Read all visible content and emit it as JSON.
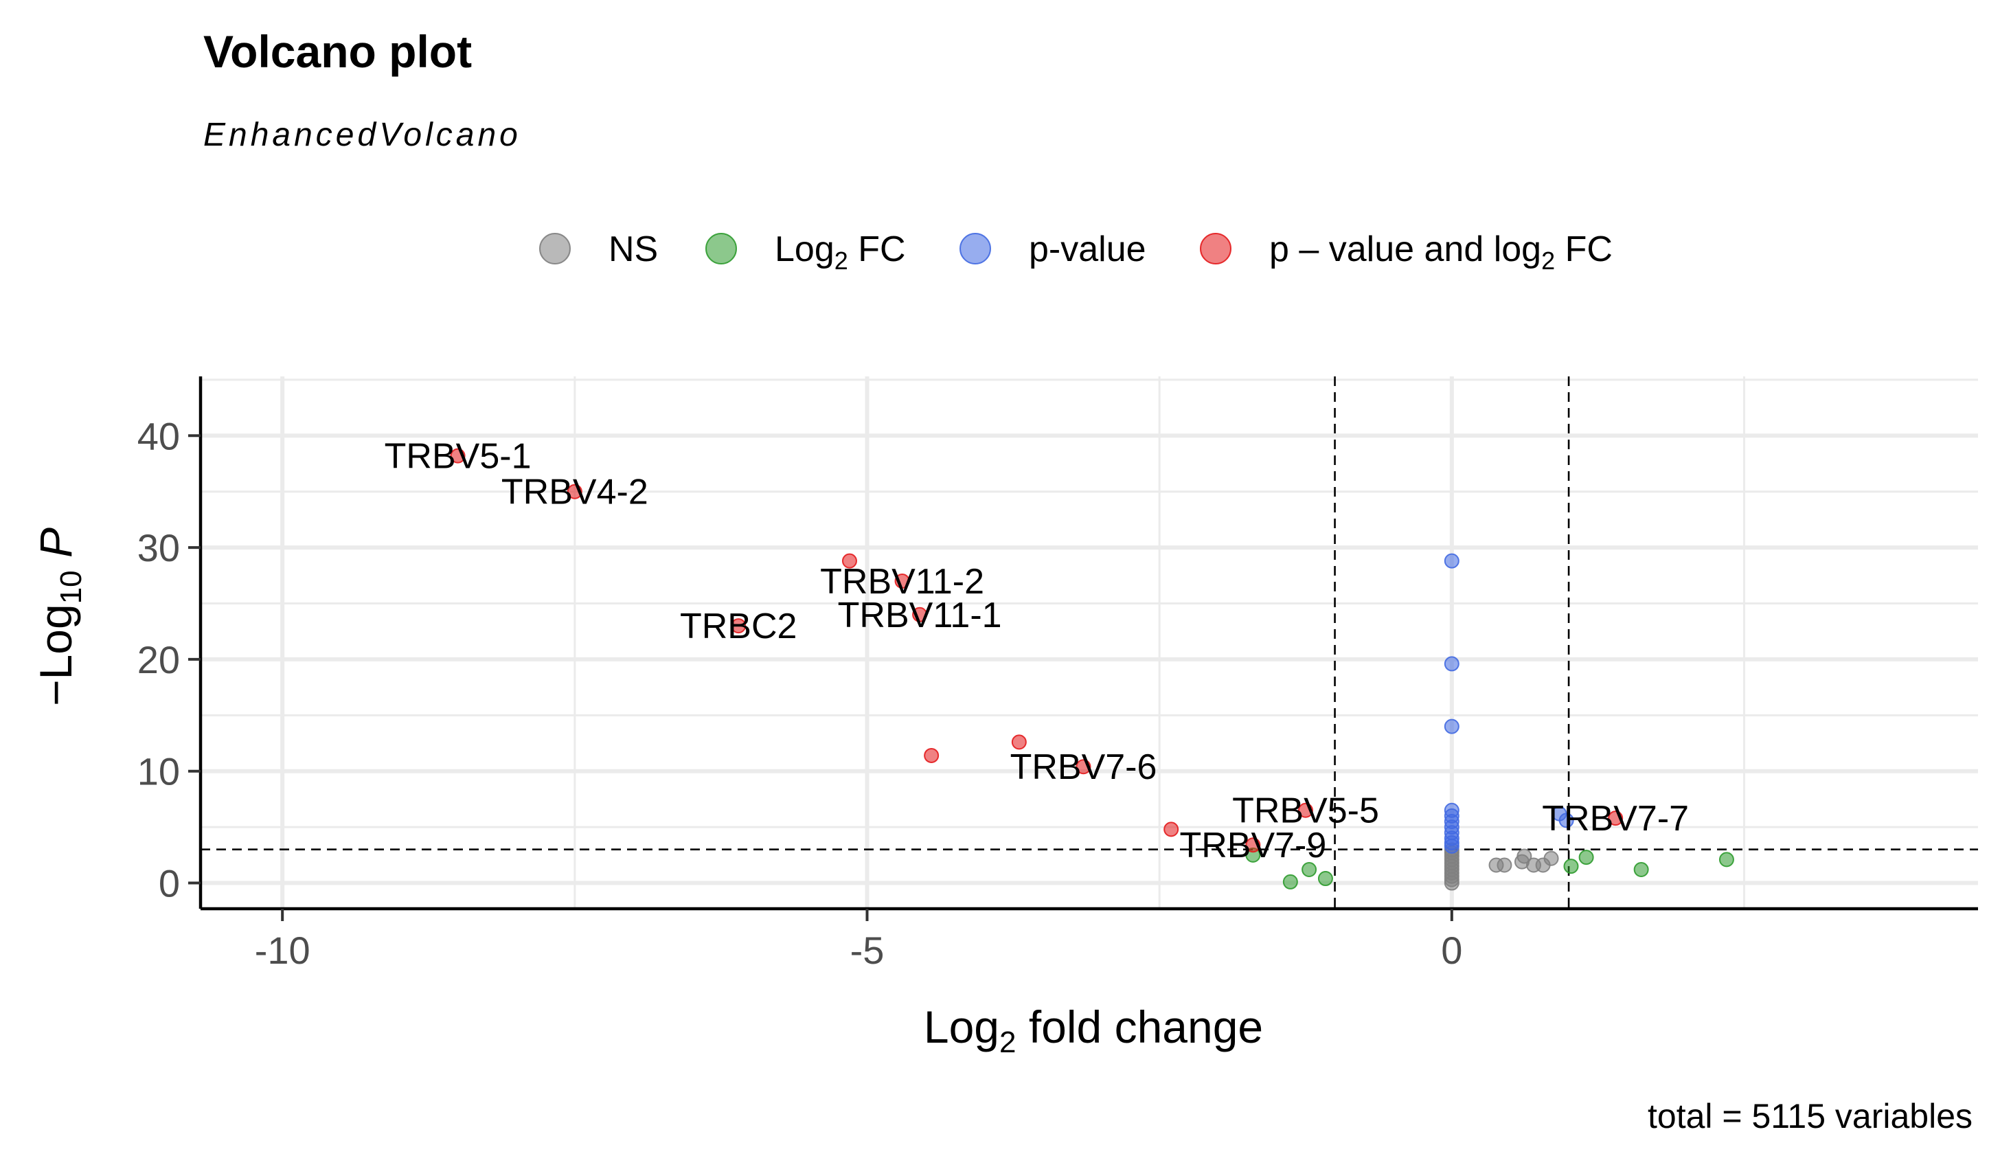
{
  "chart_data": {
    "type": "scatter",
    "title": "Volcano plot",
    "subtitle": "EnhancedVolcano",
    "caption": "total = 5115 variables",
    "xlabel": "Log2 fold change",
    "ylabel": "-Log10 P",
    "xlim": [
      -10.7,
      4.5
    ],
    "ylim": [
      -2.3,
      45.3
    ],
    "xticks": [
      -10,
      -5,
      0
    ],
    "yticks": [
      0,
      10,
      20,
      30,
      40
    ],
    "grid": true,
    "cutoffs": {
      "log2fc": [
        -1,
        1
      ],
      "neg_log10_p": 3
    },
    "legend": {
      "position": "top",
      "items": [
        {
          "key": "NS",
          "label": "NS",
          "color": "#7f7f7f"
        },
        {
          "key": "FC",
          "label": "Log2 FC",
          "color": "#2e9b2e"
        },
        {
          "key": "P",
          "label": "p-value",
          "color": "#4169e1"
        },
        {
          "key": "FC_P",
          "label": "p - value and log2 FC",
          "color": "#e31a1c"
        }
      ]
    },
    "series": [
      {
        "key": "FC_P",
        "points": [
          {
            "x": -8.5,
            "y": 38.2,
            "label": "TRBV5-1"
          },
          {
            "x": -7.5,
            "y": 35.0,
            "label": "TRBV4-2"
          },
          {
            "x": -5.15,
            "y": 28.8
          },
          {
            "x": -4.7,
            "y": 27.0,
            "label": "TRBV11-2"
          },
          {
            "x": -4.55,
            "y": 24.0,
            "label": "TRBV11-1"
          },
          {
            "x": -6.1,
            "y": 23.0,
            "label": "TRBC2"
          },
          {
            "x": -3.7,
            "y": 12.6
          },
          {
            "x": -4.45,
            "y": 11.4
          },
          {
            "x": -3.15,
            "y": 10.4,
            "label": "TRBV7-6"
          },
          {
            "x": -1.25,
            "y": 6.5,
            "label": "TRBV5-5"
          },
          {
            "x": -2.4,
            "y": 4.8
          },
          {
            "x": -1.7,
            "y": 3.4,
            "label": "TRBV7-9"
          },
          {
            "x": 1.4,
            "y": 5.8,
            "label": "TRBV7-7"
          }
        ]
      },
      {
        "key": "P",
        "points": [
          {
            "x": 0,
            "y": 28.8
          },
          {
            "x": 0,
            "y": 19.6
          },
          {
            "x": 0,
            "y": 14.0
          },
          {
            "x": 0,
            "y": 6.5
          },
          {
            "x": 0,
            "y": 6.0
          },
          {
            "x": 0,
            "y": 5.5
          },
          {
            "x": 0,
            "y": 5.0
          },
          {
            "x": 0,
            "y": 4.5
          },
          {
            "x": 0,
            "y": 4.0
          },
          {
            "x": 0,
            "y": 3.6
          },
          {
            "x": 0,
            "y": 3.3
          },
          {
            "x": 0.92,
            "y": 6.2
          },
          {
            "x": 0.98,
            "y": 5.6
          }
        ]
      },
      {
        "key": "FC",
        "points": [
          {
            "x": -1.7,
            "y": 2.5
          },
          {
            "x": -1.22,
            "y": 1.2
          },
          {
            "x": -1.38,
            "y": 0.1
          },
          {
            "x": -1.08,
            "y": 0.4
          },
          {
            "x": 1.02,
            "y": 1.5
          },
          {
            "x": 1.15,
            "y": 2.3
          },
          {
            "x": 1.62,
            "y": 1.2
          },
          {
            "x": 2.35,
            "y": 2.1
          }
        ]
      },
      {
        "key": "NS",
        "points": [
          {
            "x": 0,
            "y": 0.0
          },
          {
            "x": 0,
            "y": 0.3
          },
          {
            "x": 0,
            "y": 0.6
          },
          {
            "x": 0,
            "y": 0.9
          },
          {
            "x": 0,
            "y": 1.2
          },
          {
            "x": 0,
            "y": 1.5
          },
          {
            "x": 0,
            "y": 1.8
          },
          {
            "x": 0,
            "y": 2.1
          },
          {
            "x": 0,
            "y": 2.4
          },
          {
            "x": 0,
            "y": 2.7
          },
          {
            "x": 0,
            "y": 2.95
          },
          {
            "x": 0.38,
            "y": 1.6
          },
          {
            "x": 0.45,
            "y": 1.6
          },
          {
            "x": 0.6,
            "y": 1.9
          },
          {
            "x": 0.62,
            "y": 2.4
          },
          {
            "x": 0.7,
            "y": 1.6
          },
          {
            "x": 0.78,
            "y": 1.6
          },
          {
            "x": 0.85,
            "y": 2.2
          }
        ]
      }
    ]
  }
}
